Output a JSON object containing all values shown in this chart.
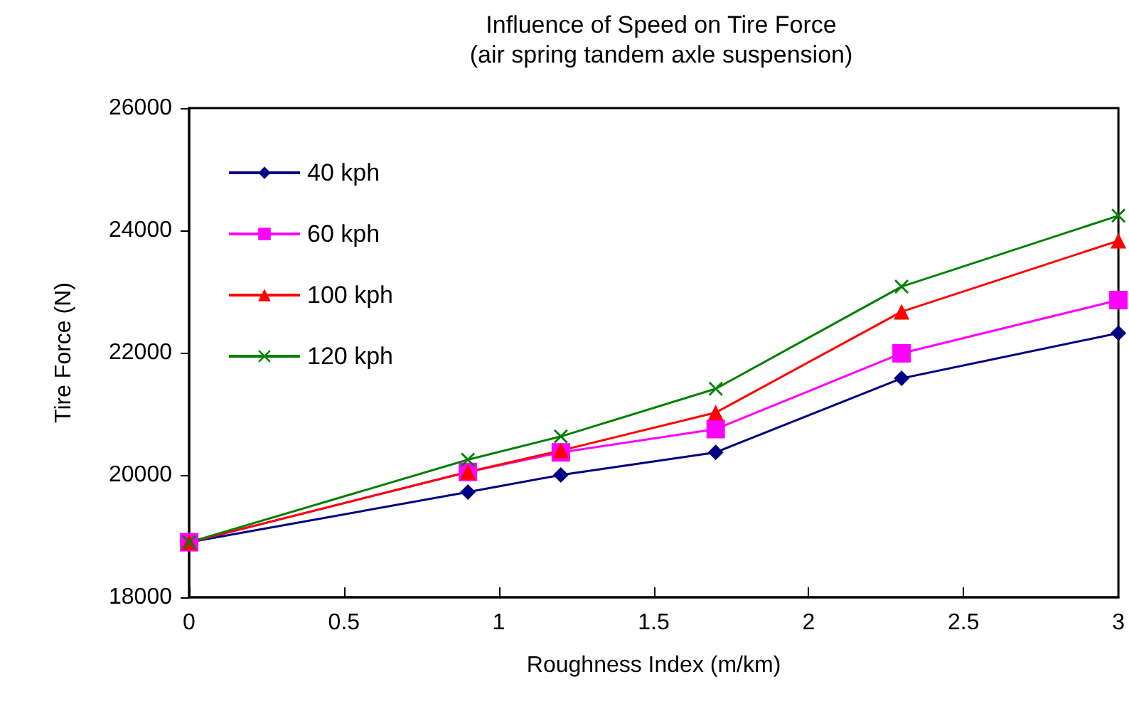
{
  "chart_data": {
    "type": "line",
    "title": "Influence of Speed on Tire Force",
    "subtitle": "(air spring tandem axle suspension)",
    "xlabel": "Roughness Index (m/km)",
    "ylabel": "Tire Force (N)",
    "x": [
      0,
      0.9,
      1.2,
      1.7,
      2.3,
      3
    ],
    "series": [
      {
        "name": "40 kph",
        "color": "#000080",
        "marker": "diamond",
        "values": [
          18900,
          19720,
          20000,
          20370,
          21580,
          22320
        ]
      },
      {
        "name": "60 kph",
        "color": "#ff00ff",
        "marker": "square",
        "values": [
          18900,
          20050,
          20370,
          20750,
          21990,
          22860
        ]
      },
      {
        "name": "100 kph",
        "color": "#ff0000",
        "marker": "triangle",
        "values": [
          18900,
          20050,
          20400,
          21020,
          22670,
          23830
        ]
      },
      {
        "name": "120 kph",
        "color": "#008000",
        "marker": "cross",
        "values": [
          18900,
          20250,
          20630,
          21410,
          23080,
          24240
        ]
      }
    ],
    "xlim": [
      0,
      3
    ],
    "xticks": [
      0,
      0.5,
      1,
      1.5,
      2,
      2.5,
      3
    ],
    "ylim": [
      18000,
      26000
    ],
    "yticks": [
      18000,
      20000,
      22000,
      24000,
      26000
    ],
    "grid": false,
    "legend": "top left",
    "line_style": "solid"
  }
}
